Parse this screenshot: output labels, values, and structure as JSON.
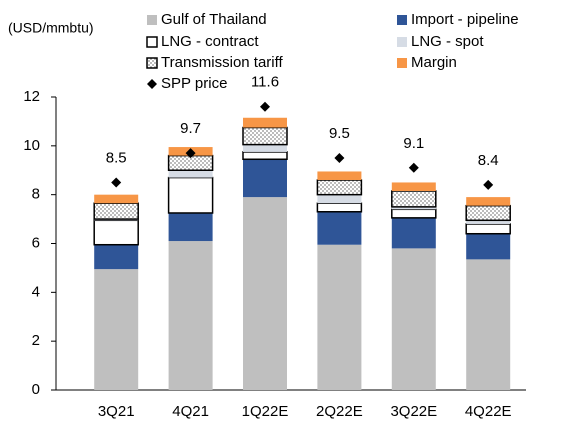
{
  "chart_data": {
    "type": "stacked_bar",
    "y_label": "(USD/mmbtu)",
    "categories": [
      "3Q21",
      "4Q21",
      "1Q22E",
      "2Q22E",
      "3Q22E",
      "4Q22E"
    ],
    "series": [
      {
        "name": "Gulf of Thailand",
        "color": "#bfbfbf",
        "values": [
          4.95,
          6.1,
          7.9,
          5.95,
          5.8,
          5.35
        ]
      },
      {
        "name": "Import - pipeline",
        "color": "#2f5597",
        "values": [
          1.0,
          1.15,
          1.55,
          1.35,
          1.25,
          1.05
        ]
      },
      {
        "name": "LNG - contract",
        "color": "#ffffff",
        "border": "#000000",
        "values": [
          1.0,
          1.45,
          0.3,
          0.35,
          0.35,
          0.4
        ]
      },
      {
        "name": "LNG - spot",
        "color": "#d6dce5",
        "values": [
          0.05,
          0.3,
          0.3,
          0.35,
          0.1,
          0.15
        ]
      },
      {
        "name": "Transmission tariff",
        "color": "#8c8c8c",
        "border": "#000000",
        "pattern": "dots",
        "values": [
          0.65,
          0.6,
          0.7,
          0.6,
          0.65,
          0.6
        ]
      },
      {
        "name": "Margin",
        "color": "#f79646",
        "values": [
          0.35,
          0.35,
          0.4,
          0.35,
          0.35,
          0.35
        ]
      }
    ],
    "markers": {
      "name": "SPP price",
      "color": "#000000",
      "values": [
        8.5,
        9.7,
        11.6,
        9.5,
        9.1,
        8.4
      ]
    },
    "ylim": [
      0,
      12
    ],
    "yticks": [
      0,
      2,
      4,
      6,
      8,
      10,
      12
    ]
  }
}
